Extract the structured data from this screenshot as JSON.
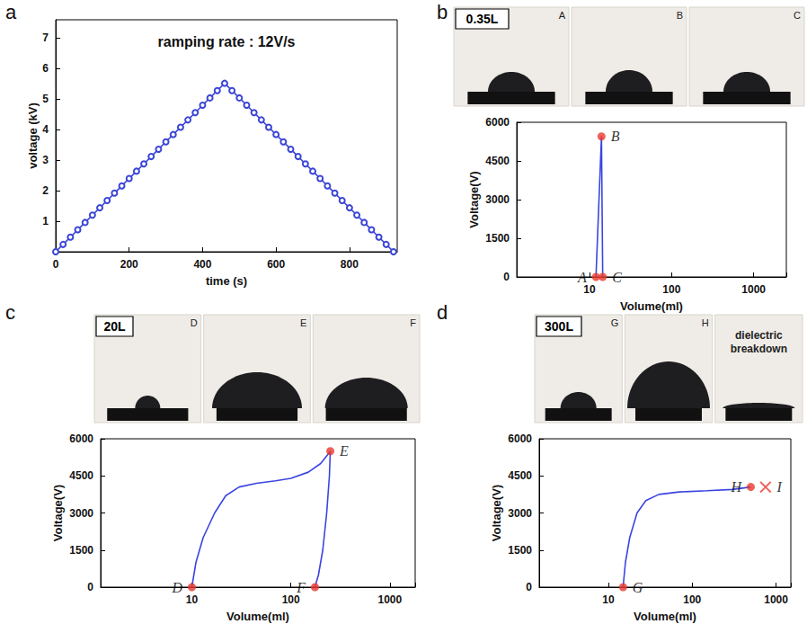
{
  "chart_data": [
    {
      "panel": "a",
      "type": "line",
      "title": "ramping rate : 12V/s",
      "x_label": "time (s)",
      "y_label": "voltage (kV)",
      "x": [
        0,
        20,
        40,
        60,
        80,
        100,
        120,
        140,
        160,
        180,
        200,
        220,
        240,
        260,
        280,
        300,
        320,
        340,
        360,
        380,
        400,
        420,
        440,
        460,
        480,
        500,
        520,
        540,
        560,
        580,
        600,
        620,
        640,
        660,
        680,
        700,
        720,
        740,
        760,
        780,
        800,
        820,
        840,
        860,
        880,
        900,
        920
      ],
      "values": [
        0,
        0.24,
        0.48,
        0.72,
        0.96,
        1.2,
        1.44,
        1.68,
        1.92,
        2.16,
        2.4,
        2.64,
        2.88,
        3.12,
        3.36,
        3.6,
        3.84,
        4.08,
        4.32,
        4.56,
        4.8,
        5.04,
        5.28,
        5.52,
        5.28,
        5.04,
        4.8,
        4.56,
        4.32,
        4.08,
        3.84,
        3.6,
        3.36,
        3.12,
        2.88,
        2.64,
        2.4,
        2.16,
        1.92,
        1.68,
        1.44,
        1.2,
        0.96,
        0.72,
        0.48,
        0.24,
        0
      ],
      "color": "#3b45d6",
      "marker": "circle_open",
      "grid": false,
      "xlim": [
        0,
        930
      ],
      "xticks": [
        0,
        200,
        400,
        600,
        800
      ],
      "ylim": [
        0,
        7.6
      ],
      "yticks": [
        1,
        2,
        3,
        4,
        5,
        6,
        7
      ]
    },
    {
      "panel": "b",
      "type": "line",
      "title": "0.35L",
      "photos": [
        {
          "label": "A"
        },
        {
          "label": "B"
        },
        {
          "label": "C"
        }
      ],
      "x_label": "Volume(ml)",
      "y_label": "Voltage(V)",
      "log": "x",
      "x": [
        12,
        14,
        14.5
      ],
      "values": [
        0,
        5450,
        0
      ],
      "color": "#3a45e0",
      "marker": "none",
      "grid": false,
      "points": [
        {
          "label": "A",
          "x": 12,
          "y": 0,
          "marker": "circle",
          "color": "#e8392e"
        },
        {
          "label": "B",
          "x": 14,
          "y": 5450,
          "marker": "circle",
          "color": "#e8392e"
        },
        {
          "label": "C",
          "x": 14.5,
          "y": 0,
          "marker": "circle",
          "color": "#e8392e"
        }
      ],
      "xlim": [
        1.3,
        2500
      ],
      "xticks": [
        10,
        100,
        1000
      ],
      "ylim": [
        0,
        6000
      ],
      "yticks": [
        0,
        1500,
        3000,
        4500,
        6000
      ]
    },
    {
      "panel": "c",
      "type": "line",
      "title": "20L",
      "photos": [
        {
          "label": "D"
        },
        {
          "label": "E"
        },
        {
          "label": "F"
        }
      ],
      "x_label": "Volume(ml)",
      "y_label": "Voltage(V)",
      "log": "x",
      "x": [
        10,
        11,
        13,
        17,
        22,
        30,
        45,
        70,
        100,
        150,
        200,
        240,
        250,
        245,
        230,
        210,
        190,
        175
      ],
      "values": [
        0,
        1000,
        2000,
        3000,
        3700,
        4050,
        4200,
        4300,
        4400,
        4650,
        5000,
        5400,
        5500,
        4500,
        3000,
        1500,
        500,
        0
      ],
      "color": "#3a45e0",
      "marker": "none",
      "grid": false,
      "points": [
        {
          "label": "D",
          "x": 10,
          "y": 0,
          "marker": "circle",
          "color": "#e8392e"
        },
        {
          "label": "E",
          "x": 250,
          "y": 5500,
          "marker": "circle",
          "color": "#e8392e"
        },
        {
          "label": "F",
          "x": 175,
          "y": 0,
          "marker": "circle",
          "color": "#e8392e"
        }
      ],
      "xlim": [
        1.2,
        1800
      ],
      "xticks": [
        10,
        100,
        1000
      ],
      "ylim": [
        0,
        6000
      ],
      "yticks": [
        0,
        1500,
        3000,
        4500,
        6000
      ]
    },
    {
      "panel": "d",
      "type": "line",
      "title": "300L",
      "photos": [
        {
          "label": "G"
        },
        {
          "label": "H"
        },
        {
          "caption": "dielectric breakdown"
        }
      ],
      "x_label": "Volume(ml)",
      "y_label": "Voltage(V)",
      "log": "x",
      "x": [
        15,
        16,
        18,
        22,
        28,
        40,
        70,
        150,
        300,
        500
      ],
      "values": [
        0,
        1000,
        2000,
        3000,
        3500,
        3750,
        3850,
        3900,
        3950,
        4050
      ],
      "color": "#3a45e0",
      "marker": "none",
      "grid": false,
      "points": [
        {
          "label": "G",
          "x": 15,
          "y": 0,
          "marker": "circle",
          "color": "#e8392e"
        },
        {
          "label": "H",
          "x": 500,
          "y": 4050,
          "marker": "circle",
          "color": "#e8392e"
        },
        {
          "label": "I",
          "x": 750,
          "y": 4050,
          "marker": "cross",
          "color": "#e8392e"
        }
      ],
      "xlim": [
        1.5,
        1500
      ],
      "xticks": [
        10,
        100,
        1000
      ],
      "ylim": [
        0,
        6000
      ],
      "yticks": [
        0,
        1500,
        3000,
        4500,
        6000
      ]
    }
  ]
}
